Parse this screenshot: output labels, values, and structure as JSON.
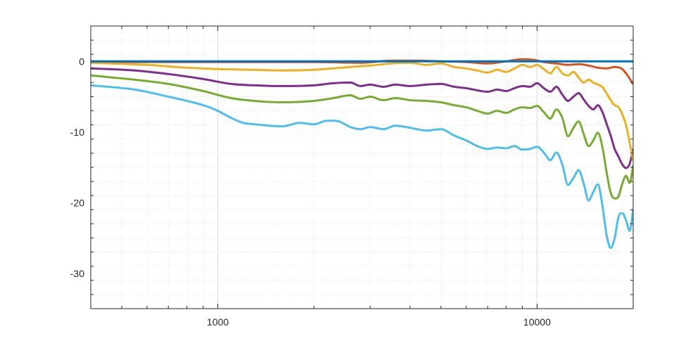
{
  "chart_data": {
    "type": "line",
    "title": "",
    "xlabel": "",
    "ylabel": "",
    "xscale": "log",
    "xlim": [
      400,
      20000
    ],
    "ylim": [
      -35,
      5
    ],
    "grid": "on (major and minor, dotted)",
    "x_ticks": [
      1000,
      10000
    ],
    "x_tick_labels": [
      "1000",
      "10000"
    ],
    "y_ticks": [
      0,
      -10,
      -20,
      -30
    ],
    "y_tick_labels": [
      "0",
      "-10",
      "-20",
      "-30"
    ],
    "series": [
      {
        "color": "#0072bd",
        "points": [
          [
            400,
            0
          ],
          [
            20000,
            0
          ]
        ]
      },
      {
        "color": "#d95319",
        "points": [
          [
            400,
            0
          ],
          [
            600,
            -0.1
          ],
          [
            1000,
            -0.1
          ],
          [
            2000,
            -0.1
          ],
          [
            2800,
            -0.2
          ],
          [
            3500,
            0.1
          ],
          [
            4200,
            0.1
          ],
          [
            5000,
            0
          ],
          [
            6000,
            -0.1
          ],
          [
            7000,
            -0.3
          ],
          [
            8000,
            0
          ],
          [
            9000,
            0.3
          ],
          [
            9800,
            0.2
          ],
          [
            10500,
            -0.1
          ],
          [
            11500,
            -0.3
          ],
          [
            12500,
            -0.5
          ],
          [
            13500,
            -0.4
          ],
          [
            14500,
            -0.6
          ],
          [
            15500,
            -0.9
          ],
          [
            16500,
            -1
          ],
          [
            17500,
            -0.8
          ],
          [
            18500,
            -1.1
          ],
          [
            19200,
            -2
          ],
          [
            20000,
            -3.2
          ]
        ]
      },
      {
        "color": "#edb120",
        "points": [
          [
            400,
            -0.2
          ],
          [
            600,
            -0.5
          ],
          [
            800,
            -0.9
          ],
          [
            1000,
            -1.1
          ],
          [
            1300,
            -1.2
          ],
          [
            1600,
            -1.3
          ],
          [
            2000,
            -1.2
          ],
          [
            2300,
            -1
          ],
          [
            2600,
            -0.8
          ],
          [
            3000,
            -0.6
          ],
          [
            3500,
            -0.3
          ],
          [
            4000,
            -0.2
          ],
          [
            4500,
            -0.5
          ],
          [
            5000,
            -0.3
          ],
          [
            5500,
            -0.8
          ],
          [
            6000,
            -1
          ],
          [
            6500,
            -1.3
          ],
          [
            7000,
            -1.6
          ],
          [
            7500,
            -1.2
          ],
          [
            8000,
            -1.5
          ],
          [
            8500,
            -1
          ],
          [
            9000,
            -0.5
          ],
          [
            9500,
            -0.8
          ],
          [
            10000,
            -0.5
          ],
          [
            10500,
            -1.1
          ],
          [
            11000,
            -1.7
          ],
          [
            11500,
            -0.8
          ],
          [
            12000,
            -1.7
          ],
          [
            12500,
            -2
          ],
          [
            13000,
            -1.5
          ],
          [
            13500,
            -2.3
          ],
          [
            14000,
            -3
          ],
          [
            14500,
            -2.6
          ],
          [
            15000,
            -3
          ],
          [
            15500,
            -3.3
          ],
          [
            16000,
            -3.6
          ],
          [
            16500,
            -4.5
          ],
          [
            17000,
            -5.5
          ],
          [
            17500,
            -6.2
          ],
          [
            18000,
            -6.5
          ],
          [
            18500,
            -7.5
          ],
          [
            19000,
            -9
          ],
          [
            19500,
            -11.5
          ],
          [
            20000,
            -14
          ]
        ]
      },
      {
        "color": "#7e2f8e",
        "points": [
          [
            400,
            -1
          ],
          [
            550,
            -1.3
          ],
          [
            700,
            -1.8
          ],
          [
            900,
            -2.5
          ],
          [
            1100,
            -3.2
          ],
          [
            1300,
            -3.4
          ],
          [
            1600,
            -3.5
          ],
          [
            2000,
            -3.4
          ],
          [
            2300,
            -3.1
          ],
          [
            2600,
            -3
          ],
          [
            2800,
            -3.5
          ],
          [
            3000,
            -3.3
          ],
          [
            3300,
            -3.6
          ],
          [
            3600,
            -3.3
          ],
          [
            4000,
            -3.5
          ],
          [
            4500,
            -3.3
          ],
          [
            5000,
            -3.2
          ],
          [
            5500,
            -3.6
          ],
          [
            6000,
            -3.8
          ],
          [
            6500,
            -4.1
          ],
          [
            7000,
            -4.3
          ],
          [
            7500,
            -4
          ],
          [
            8000,
            -4.2
          ],
          [
            8500,
            -3.8
          ],
          [
            9000,
            -3.5
          ],
          [
            9500,
            -3.6
          ],
          [
            10000,
            -3.1
          ],
          [
            10500,
            -3.8
          ],
          [
            11000,
            -4.3
          ],
          [
            11500,
            -3.6
          ],
          [
            12000,
            -4.7
          ],
          [
            12500,
            -5.6
          ],
          [
            13000,
            -5
          ],
          [
            13500,
            -4.5
          ],
          [
            14000,
            -5.4
          ],
          [
            14500,
            -6.3
          ],
          [
            15000,
            -6.8
          ],
          [
            15500,
            -6.2
          ],
          [
            16000,
            -7.1
          ],
          [
            16500,
            -8.8
          ],
          [
            17000,
            -10.5
          ],
          [
            17500,
            -12.4
          ],
          [
            18000,
            -13.5
          ],
          [
            18500,
            -14.6
          ],
          [
            19000,
            -15.1
          ],
          [
            19500,
            -14.5
          ],
          [
            20000,
            -12.5
          ]
        ]
      },
      {
        "color": "#77ac30",
        "points": [
          [
            400,
            -2
          ],
          [
            550,
            -2.6
          ],
          [
            700,
            -3.2
          ],
          [
            900,
            -4.2
          ],
          [
            1100,
            -5.2
          ],
          [
            1300,
            -5.6
          ],
          [
            1600,
            -5.8
          ],
          [
            2000,
            -5.6
          ],
          [
            2300,
            -5.2
          ],
          [
            2600,
            -4.8
          ],
          [
            2800,
            -5.3
          ],
          [
            3000,
            -5
          ],
          [
            3300,
            -5.5
          ],
          [
            3600,
            -5.2
          ],
          [
            4000,
            -5.5
          ],
          [
            4500,
            -5.6
          ],
          [
            5000,
            -5.8
          ],
          [
            5500,
            -6.2
          ],
          [
            6000,
            -6.5
          ],
          [
            6500,
            -7
          ],
          [
            7000,
            -7.4
          ],
          [
            7500,
            -7
          ],
          [
            8000,
            -7.3
          ],
          [
            8500,
            -6.8
          ],
          [
            9000,
            -6.5
          ],
          [
            9500,
            -6.6
          ],
          [
            10000,
            -6.3
          ],
          [
            10500,
            -7.2
          ],
          [
            11000,
            -8.1
          ],
          [
            11500,
            -6.8
          ],
          [
            12000,
            -8
          ],
          [
            12500,
            -10.6
          ],
          [
            13000,
            -9.4
          ],
          [
            13500,
            -8.5
          ],
          [
            14000,
            -10.3
          ],
          [
            14500,
            -12
          ],
          [
            15000,
            -11.2
          ],
          [
            15500,
            -10.1
          ],
          [
            16000,
            -12
          ],
          [
            16500,
            -15.6
          ],
          [
            17000,
            -18.6
          ],
          [
            17500,
            -19.4
          ],
          [
            18000,
            -19.1
          ],
          [
            18500,
            -17.3
          ],
          [
            19000,
            -16.2
          ],
          [
            19500,
            -17.2
          ],
          [
            20000,
            -14.8
          ]
        ]
      },
      {
        "color": "#4dbeee",
        "points": [
          [
            400,
            -3.4
          ],
          [
            550,
            -4
          ],
          [
            700,
            -5
          ],
          [
            900,
            -6.2
          ],
          [
            1000,
            -7
          ],
          [
            1100,
            -8
          ],
          [
            1200,
            -8.7
          ],
          [
            1300,
            -8.9
          ],
          [
            1600,
            -9.2
          ],
          [
            1800,
            -8.7
          ],
          [
            2000,
            -8.9
          ],
          [
            2200,
            -8.4
          ],
          [
            2400,
            -8.5
          ],
          [
            2600,
            -9.3
          ],
          [
            2800,
            -9.6
          ],
          [
            3000,
            -9.3
          ],
          [
            3300,
            -9.6
          ],
          [
            3600,
            -9.1
          ],
          [
            4000,
            -9.4
          ],
          [
            4500,
            -9.8
          ],
          [
            5000,
            -9.6
          ],
          [
            5500,
            -10.5
          ],
          [
            6000,
            -11.2
          ],
          [
            6500,
            -12
          ],
          [
            7000,
            -12.4
          ],
          [
            7500,
            -12.2
          ],
          [
            8000,
            -12.3
          ],
          [
            8500,
            -12
          ],
          [
            9000,
            -12.5
          ],
          [
            9500,
            -12.4
          ],
          [
            10000,
            -12.1
          ],
          [
            10500,
            -12.9
          ],
          [
            11000,
            -14
          ],
          [
            11500,
            -12.9
          ],
          [
            12000,
            -14.6
          ],
          [
            12500,
            -17.5
          ],
          [
            13000,
            -16.5
          ],
          [
            13500,
            -15.4
          ],
          [
            14000,
            -17.3
          ],
          [
            14500,
            -19.7
          ],
          [
            15000,
            -18.5
          ],
          [
            15500,
            -17.4
          ],
          [
            16000,
            -20.2
          ],
          [
            16500,
            -24.5
          ],
          [
            17000,
            -26.4
          ],
          [
            17500,
            -25
          ],
          [
            18000,
            -22
          ],
          [
            18500,
            -21.5
          ],
          [
            19000,
            -22.5
          ],
          [
            19500,
            -24
          ],
          [
            20000,
            -21
          ]
        ]
      }
    ]
  }
}
